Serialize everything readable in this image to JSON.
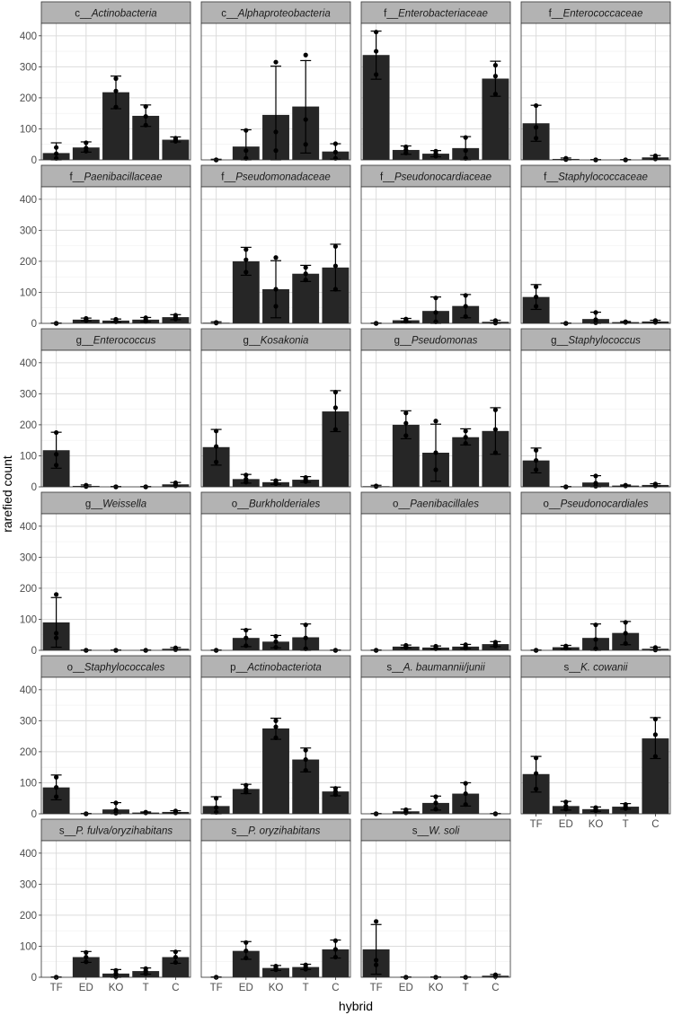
{
  "chart_data": {
    "type": "bar",
    "xlabel": "hybrid",
    "ylabel": "rarefied count",
    "categories": [
      "TF",
      "ED",
      "KO",
      "T",
      "C"
    ],
    "ylim": [
      0,
      440
    ],
    "yticks": [
      0,
      100,
      200,
      300,
      400
    ],
    "grid": true,
    "colors": {
      "bar": "#262626",
      "strip": "#b3b3b3",
      "grid": "#dcdcdc",
      "panel_border": "#333333",
      "error_bar": "#000000",
      "point": "#000000"
    },
    "panels": [
      {
        "prefix": "c__",
        "taxon": "Actinobacteria",
        "values": [
          22,
          40,
          218,
          142,
          65
        ],
        "ymin": [
          0,
          25,
          165,
          108,
          58
        ],
        "ymax": [
          55,
          58,
          270,
          177,
          74
        ],
        "points": [
          [
            5,
            20,
            40
          ],
          [
            28,
            38,
            55
          ],
          [
            170,
            222,
            262
          ],
          [
            112,
            140,
            172
          ],
          [
            60,
            65,
            70
          ]
        ]
      },
      {
        "prefix": "c__",
        "taxon": "Alphaproteobacteria",
        "values": [
          0,
          43,
          145,
          172,
          27
        ],
        "ymin": [
          0,
          0,
          0,
          22,
          2
        ],
        "ymax": [
          2,
          97,
          302,
          320,
          52
        ],
        "points": [
          [
            0,
            0,
            0
          ],
          [
            5,
            30,
            95
          ],
          [
            30,
            90,
            315
          ],
          [
            50,
            130,
            338
          ],
          [
            5,
            25,
            52
          ]
        ]
      },
      {
        "prefix": "f__",
        "taxon": "Enterobacteriaceae",
        "values": [
          338,
          32,
          20,
          38,
          262
        ],
        "ymin": [
          260,
          18,
          10,
          0,
          205
        ],
        "ymax": [
          415,
          45,
          30,
          75,
          318
        ],
        "points": [
          [
            275,
            350,
            412
          ],
          [
            22,
            32,
            42
          ],
          [
            12,
            20,
            28
          ],
          [
            5,
            30,
            72
          ],
          [
            212,
            270,
            305
          ]
        ]
      },
      {
        "prefix": "f__",
        "taxon": "Enterococcaceae",
        "values": [
          118,
          3,
          0,
          0,
          8
        ],
        "ymin": [
          60,
          0,
          0,
          0,
          2
        ],
        "ymax": [
          176,
          6,
          1,
          1,
          14
        ],
        "points": [
          [
            70,
            105,
            175
          ],
          [
            1,
            3,
            5
          ],
          [
            0,
            0,
            0
          ],
          [
            0,
            0,
            0
          ],
          [
            3,
            8,
            13
          ]
        ]
      },
      {
        "prefix": "f__",
        "taxon": "Paenibacillaceae",
        "values": [
          0,
          12,
          9,
          12,
          20
        ],
        "ymin": [
          0,
          8,
          4,
          5,
          12
        ],
        "ymax": [
          1,
          17,
          14,
          19,
          28
        ],
        "points": [
          [
            0,
            0,
            0
          ],
          [
            9,
            12,
            16
          ],
          [
            5,
            9,
            13
          ],
          [
            6,
            12,
            18
          ],
          [
            14,
            20,
            26
          ]
        ]
      },
      {
        "prefix": "f__",
        "taxon": "Pseudomonadaceae",
        "values": [
          2,
          200,
          110,
          160,
          180
        ],
        "ymin": [
          0,
          155,
          18,
          135,
          105
        ],
        "ymax": [
          5,
          245,
          202,
          187,
          255
        ],
        "points": [
          [
            1,
            2,
            3
          ],
          [
            165,
            205,
            238
          ],
          [
            55,
            110,
            212
          ],
          [
            140,
            160,
            180
          ],
          [
            110,
            185,
            248
          ]
        ]
      },
      {
        "prefix": "f__",
        "taxon": "Pseudonocardiaceae",
        "values": [
          0,
          10,
          40,
          56,
          5
        ],
        "ymin": [
          0,
          4,
          0,
          18,
          0
        ],
        "ymax": [
          1,
          16,
          85,
          93,
          10
        ],
        "points": [
          [
            0,
            0,
            0
          ],
          [
            6,
            10,
            14
          ],
          [
            5,
            35,
            82
          ],
          [
            22,
            55,
            90
          ],
          [
            1,
            5,
            9
          ]
        ]
      },
      {
        "prefix": "f__",
        "taxon": "Staphylococcaceae",
        "values": [
          85,
          0,
          14,
          4,
          6
        ],
        "ymin": [
          45,
          0,
          0,
          2,
          2
        ],
        "ymax": [
          125,
          1,
          36,
          6,
          10
        ],
        "points": [
          [
            55,
            85,
            118
          ],
          [
            0,
            0,
            0
          ],
          [
            2,
            12,
            35
          ],
          [
            3,
            4,
            5
          ],
          [
            3,
            6,
            9
          ]
        ]
      },
      {
        "prefix": "g__",
        "taxon": "Enterococcus",
        "values": [
          118,
          3,
          0,
          0,
          8
        ],
        "ymin": [
          60,
          0,
          0,
          0,
          2
        ],
        "ymax": [
          176,
          6,
          1,
          1,
          14
        ],
        "points": [
          [
            70,
            105,
            175
          ],
          [
            1,
            3,
            5
          ],
          [
            0,
            0,
            0
          ],
          [
            0,
            0,
            0
          ],
          [
            3,
            8,
            13
          ]
        ]
      },
      {
        "prefix": "g__",
        "taxon": "Kosakonia",
        "values": [
          128,
          25,
          15,
          23,
          243
        ],
        "ymin": [
          70,
          12,
          8,
          15,
          178
        ],
        "ymax": [
          185,
          40,
          22,
          33,
          310
        ],
        "points": [
          [
            80,
            130,
            180
          ],
          [
            15,
            25,
            38
          ],
          [
            10,
            15,
            20
          ],
          [
            17,
            23,
            30
          ],
          [
            185,
            255,
            305
          ]
        ]
      },
      {
        "prefix": "g__",
        "taxon": "Pseudomonas",
        "values": [
          2,
          200,
          110,
          160,
          180
        ],
        "ymin": [
          0,
          155,
          18,
          135,
          105
        ],
        "ymax": [
          5,
          245,
          202,
          187,
          255
        ],
        "points": [
          [
            1,
            2,
            3
          ],
          [
            165,
            205,
            238
          ],
          [
            55,
            110,
            212
          ],
          [
            140,
            160,
            180
          ],
          [
            110,
            185,
            248
          ]
        ]
      },
      {
        "prefix": "g__",
        "taxon": "Staphylococcus",
        "values": [
          85,
          0,
          14,
          4,
          6
        ],
        "ymin": [
          45,
          0,
          0,
          2,
          2
        ],
        "ymax": [
          125,
          1,
          36,
          6,
          10
        ],
        "points": [
          [
            55,
            85,
            118
          ],
          [
            0,
            0,
            0
          ],
          [
            2,
            12,
            35
          ],
          [
            3,
            4,
            5
          ],
          [
            3,
            6,
            9
          ]
        ]
      },
      {
        "prefix": "g__",
        "taxon": "Weissella",
        "values": [
          90,
          0,
          0,
          0,
          5
        ],
        "ymin": [
          10,
          0,
          0,
          0,
          1
        ],
        "ymax": [
          170,
          1,
          1,
          1,
          9
        ],
        "points": [
          [
            40,
            55,
            180
          ],
          [
            0,
            0,
            0
          ],
          [
            0,
            0,
            0
          ],
          [
            0,
            0,
            0
          ],
          [
            2,
            5,
            8
          ]
        ]
      },
      {
        "prefix": "o__",
        "taxon": "Burkholderiales",
        "values": [
          0,
          40,
          28,
          42,
          0
        ],
        "ymin": [
          0,
          12,
          8,
          0,
          0
        ],
        "ymax": [
          1,
          68,
          48,
          85,
          1
        ],
        "points": [
          [
            0,
            0,
            0
          ],
          [
            15,
            40,
            65
          ],
          [
            10,
            28,
            45
          ],
          [
            5,
            40,
            82
          ],
          [
            0,
            0,
            0
          ]
        ]
      },
      {
        "prefix": "o__",
        "taxon": "Paenibacillales",
        "values": [
          0,
          12,
          9,
          12,
          20
        ],
        "ymin": [
          0,
          8,
          4,
          5,
          12
        ],
        "ymax": [
          1,
          17,
          14,
          19,
          28
        ],
        "points": [
          [
            0,
            0,
            0
          ],
          [
            9,
            12,
            16
          ],
          [
            5,
            9,
            13
          ],
          [
            6,
            12,
            18
          ],
          [
            14,
            20,
            26
          ]
        ]
      },
      {
        "prefix": "o__",
        "taxon": "Pseudonocardiales",
        "values": [
          0,
          10,
          40,
          56,
          5
        ],
        "ymin": [
          0,
          4,
          0,
          18,
          0
        ],
        "ymax": [
          1,
          16,
          85,
          93,
          10
        ],
        "points": [
          [
            0,
            0,
            0
          ],
          [
            6,
            10,
            14
          ],
          [
            5,
            35,
            82
          ],
          [
            22,
            55,
            90
          ],
          [
            1,
            5,
            9
          ]
        ]
      },
      {
        "prefix": "o__",
        "taxon": "Staphylococcales",
        "values": [
          85,
          0,
          14,
          4,
          6
        ],
        "ymin": [
          45,
          0,
          0,
          2,
          2
        ],
        "ymax": [
          125,
          1,
          36,
          6,
          10
        ],
        "points": [
          [
            55,
            85,
            118
          ],
          [
            0,
            0,
            0
          ],
          [
            2,
            12,
            35
          ],
          [
            3,
            4,
            5
          ],
          [
            3,
            6,
            9
          ]
        ]
      },
      {
        "prefix": "p__",
        "taxon": "Actinobacteriota",
        "values": [
          25,
          80,
          275,
          175,
          72
        ],
        "ymin": [
          0,
          65,
          240,
          135,
          58
        ],
        "ymax": [
          55,
          95,
          308,
          212,
          86
        ],
        "points": [
          [
            5,
            20,
            50
          ],
          [
            70,
            80,
            92
          ],
          [
            245,
            280,
            300
          ],
          [
            140,
            175,
            205
          ],
          [
            62,
            72,
            82
          ]
        ]
      },
      {
        "prefix": "s__",
        "taxon": "A. baumannii/junii",
        "values": [
          0,
          8,
          35,
          65,
          0
        ],
        "ymin": [
          0,
          2,
          12,
          25,
          0
        ],
        "ymax": [
          1,
          15,
          57,
          100,
          1
        ],
        "points": [
          [
            0,
            0,
            0
          ],
          [
            3,
            8,
            13
          ],
          [
            15,
            35,
            55
          ],
          [
            30,
            65,
            98
          ],
          [
            0,
            0,
            0
          ]
        ]
      },
      {
        "prefix": "s__",
        "taxon": "K. cowanii",
        "values": [
          128,
          25,
          15,
          23,
          243
        ],
        "ymin": [
          70,
          12,
          8,
          15,
          178
        ],
        "ymax": [
          185,
          40,
          22,
          33,
          310
        ],
        "points": [
          [
            80,
            130,
            180
          ],
          [
            15,
            25,
            38
          ],
          [
            10,
            15,
            20
          ],
          [
            17,
            23,
            30
          ],
          [
            185,
            255,
            305
          ]
        ]
      },
      {
        "prefix": "s__",
        "taxon": "P. fulva/oryzihabitans",
        "values": [
          0,
          65,
          12,
          20,
          65
        ],
        "ymin": [
          0,
          48,
          0,
          10,
          45
        ],
        "ymax": [
          1,
          83,
          25,
          30,
          85
        ],
        "points": [
          [
            0,
            0,
            0
          ],
          [
            50,
            65,
            80
          ],
          [
            2,
            12,
            22
          ],
          [
            12,
            20,
            28
          ],
          [
            48,
            65,
            82
          ]
        ]
      },
      {
        "prefix": "s__",
        "taxon": "P. oryzihabitans",
        "values": [
          0,
          85,
          30,
          33,
          90
        ],
        "ymin": [
          0,
          58,
          22,
          25,
          62
        ],
        "ymax": [
          1,
          115,
          38,
          42,
          120
        ],
        "points": [
          [
            0,
            0,
            0
          ],
          [
            62,
            85,
            112
          ],
          [
            24,
            30,
            36
          ],
          [
            26,
            33,
            40
          ],
          [
            65,
            90,
            118
          ]
        ]
      },
      {
        "prefix": "s__",
        "taxon": "W. soli",
        "values": [
          90,
          0,
          0,
          0,
          5
        ],
        "ymin": [
          10,
          0,
          0,
          0,
          1
        ],
        "ymax": [
          170,
          1,
          1,
          1,
          9
        ],
        "points": [
          [
            40,
            55,
            180
          ],
          [
            0,
            0,
            0
          ],
          [
            0,
            0,
            0
          ],
          [
            0,
            0,
            0
          ],
          [
            2,
            5,
            8
          ]
        ]
      }
    ]
  }
}
